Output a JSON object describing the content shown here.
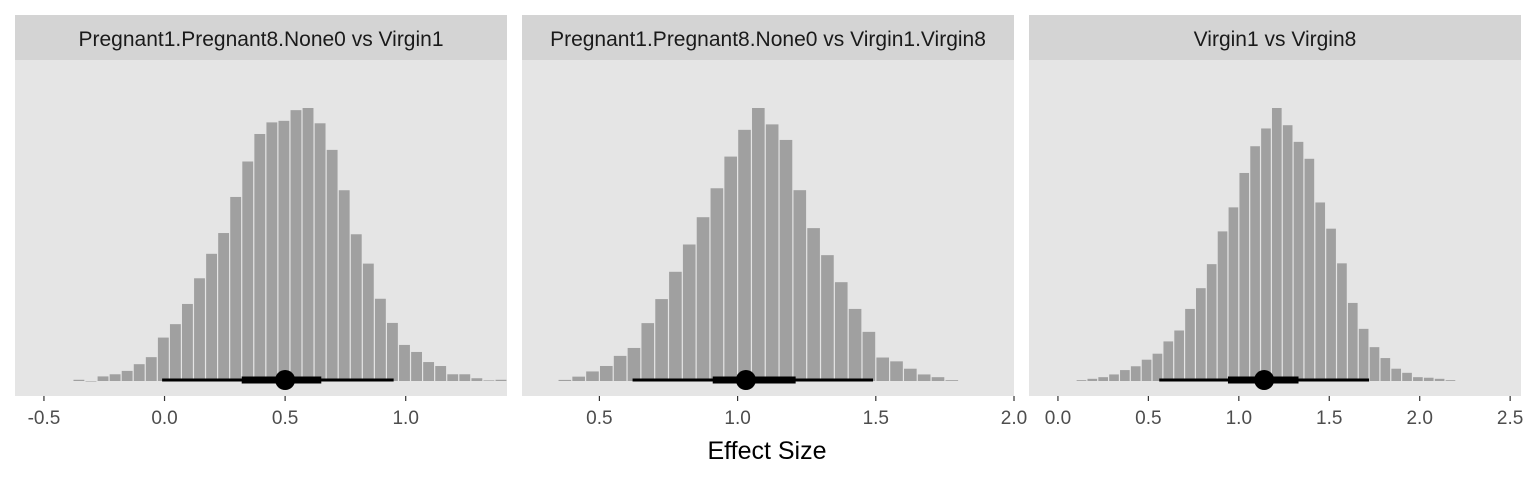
{
  "chart_data": {
    "type": "histogram",
    "xlabel": "Effect Size",
    "ylabel": "",
    "grid": false,
    "colors": {
      "panel_bg": "#e5e5e5",
      "strip_bg": "#d4d4d4",
      "bar": "#a0a0a0",
      "interval": "#000000"
    },
    "panels": [
      {
        "label": "Pregnant1.Pregnant8.None0 vs Virgin1",
        "xlim": [
          -0.62,
          1.42
        ],
        "ticks": [
          -0.5,
          0.0,
          0.5,
          1.0
        ],
        "tick_labels": [
          "-0.5",
          "0.0",
          "0.5",
          "1.0"
        ],
        "bin_start": -0.38,
        "bin_width": 0.05,
        "counts": [
          0.4,
          0.0,
          1.5,
          2.2,
          3.3,
          5.5,
          7.8,
          14.2,
          18.6,
          25.2,
          33.6,
          41.6,
          48.4,
          60.2,
          71.8,
          80.8,
          84.6,
          85.1,
          88.6,
          89.3,
          84.3,
          75.6,
          62.4,
          48.0,
          38.4,
          26.9,
          19.0,
          11.8,
          9.5,
          6.2,
          4.9,
          2.2,
          2.2,
          0.9,
          0.2,
          0.4
        ],
        "interval": {
          "median": 0.5,
          "inner": [
            0.32,
            0.65
          ],
          "outer": [
            -0.01,
            0.95
          ]
        }
      },
      {
        "label": "Pregnant1.Pregnant8.None0 vs Virgin1.Virgin8",
        "xlim": [
          0.22,
          2.0
        ],
        "ticks": [
          0.5,
          1.0,
          1.5,
          2.0
        ],
        "tick_labels": [
          "0.5",
          "1.0",
          "1.5",
          "2.0"
        ],
        "bin_start": 0.35,
        "bin_width": 0.05,
        "counts": [
          0.4,
          1.6,
          3.5,
          5.5,
          9.2,
          12.1,
          21.2,
          30.0,
          40.0,
          50.0,
          60.0,
          70.6,
          82.2,
          92.0,
          100.0,
          94.0,
          88.3,
          69.9,
          56.0,
          46.1,
          36.2,
          26.4,
          18.0,
          8.6,
          7.2,
          4.5,
          2.4,
          1.4,
          0.3
        ],
        "interval": {
          "median": 1.03,
          "inner": [
            0.91,
            1.21
          ],
          "outer": [
            0.62,
            1.49
          ]
        }
      },
      {
        "label": "Virgin1 vs Virgin8",
        "xlim": [
          -0.16,
          2.56
        ],
        "ticks": [
          0.0,
          0.5,
          1.0,
          1.5,
          2.0,
          2.5
        ],
        "tick_labels": [
          "0.0",
          "0.5",
          "1.0",
          "1.5",
          "2.0",
          "2.5"
        ],
        "bin_start": 0.1,
        "bin_width": 0.06,
        "counts": [
          0.3,
          0.8,
          1.4,
          2.4,
          4.0,
          5.4,
          7.8,
          10.0,
          14.5,
          18.5,
          26.4,
          34.0,
          42.8,
          54.8,
          63.6,
          76.2,
          86.0,
          92.5,
          100.0,
          93.7,
          87.6,
          81.4,
          65.4,
          55.8,
          43.1,
          28.6,
          19.1,
          12.4,
          8.4,
          4.5,
          3.0,
          1.4,
          1.2,
          0.8,
          0.3
        ],
        "interval": {
          "median": 1.14,
          "inner": [
            0.94,
            1.33
          ],
          "outer": [
            0.56,
            1.72
          ]
        }
      }
    ]
  }
}
